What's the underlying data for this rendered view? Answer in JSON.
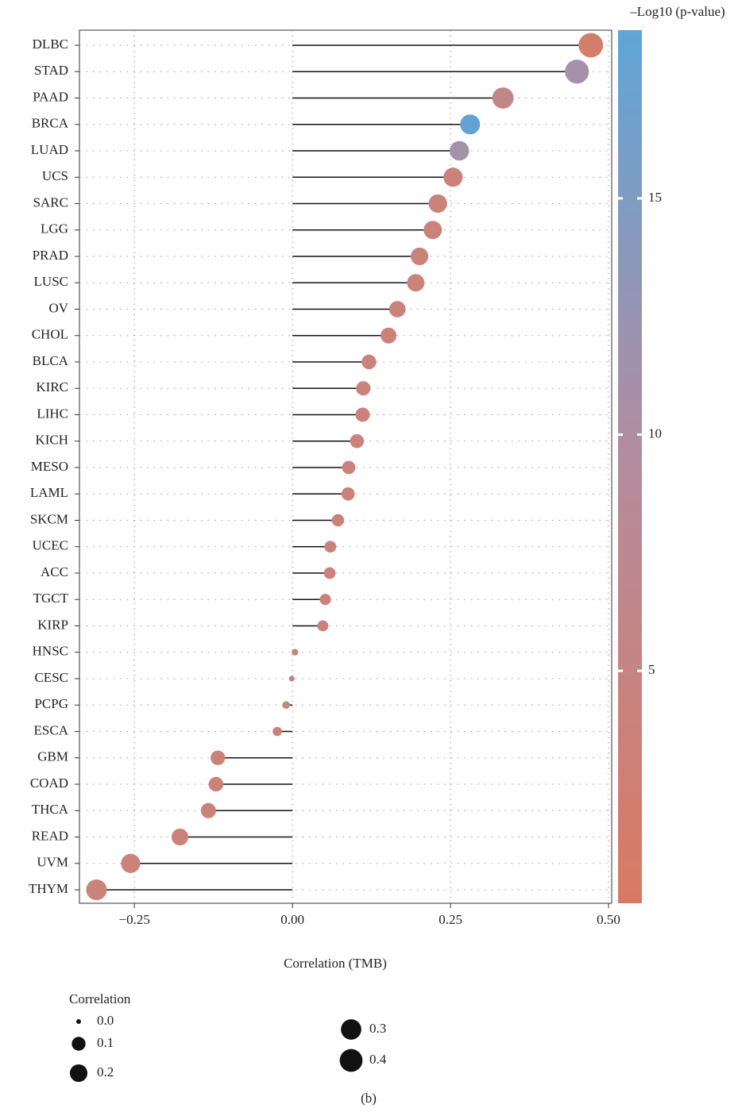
{
  "chart_data": {
    "type": "lollipop",
    "categories": [
      "DLBC",
      "STAD",
      "PAAD",
      "BRCA",
      "LUAD",
      "UCS",
      "SARC",
      "LGG",
      "PRAD",
      "LUSC",
      "OV",
      "CHOL",
      "BLCA",
      "KIRC",
      "LIHC",
      "KICH",
      "MESO",
      "LAML",
      "SKCM",
      "UCEC",
      "ACC",
      "TGCT",
      "KIRP",
      "HNSC",
      "CESC",
      "PCPG",
      "ESCA",
      "GBM",
      "COAD",
      "THCA",
      "READ",
      "UVM",
      "THYM"
    ],
    "values": [
      0.472,
      0.45,
      0.333,
      0.281,
      0.264,
      0.254,
      0.23,
      0.222,
      0.201,
      0.195,
      0.166,
      0.152,
      0.121,
      0.112,
      0.111,
      0.102,
      0.089,
      0.088,
      0.072,
      0.06,
      0.059,
      0.052,
      0.048,
      0.004,
      -0.001,
      -0.01,
      -0.024,
      -0.118,
      -0.121,
      -0.133,
      -0.178,
      -0.256,
      -0.31
    ],
    "neg_log10_p": [
      1.5,
      11,
      6,
      18,
      11,
      4,
      4,
      4,
      4,
      4,
      4,
      4,
      4,
      4,
      4,
      4,
      4,
      4,
      4,
      4,
      4,
      4,
      4,
      4,
      4,
      4,
      4,
      4,
      4,
      4,
      4,
      4,
      4
    ],
    "xlabel": "Correlation (TMB)",
    "xlim": [
      -0.337,
      0.505
    ],
    "xticks": [
      {
        "value": -0.25,
        "label": "−0.25"
      },
      {
        "value": 0,
        "label": "0.00"
      },
      {
        "value": 0.25,
        "label": "0.25"
      },
      {
        "value": 0.5,
        "label": "0.50"
      }
    ],
    "grid": true,
    "colorbar": {
      "title": "–Log10 (p-value)",
      "lim": [
        0.08,
        18.56
      ],
      "ticks": [
        5,
        10,
        15
      ],
      "colors": [
        "#d97a62",
        "#b58c9e",
        "#5ea5d8"
      ]
    },
    "size_legend": {
      "title": "Correlation",
      "values": [
        {
          "value": 0,
          "label": "0.0"
        },
        {
          "value": 0.1,
          "label": "0.1"
        },
        {
          "value": 0.2,
          "label": "0.2"
        },
        {
          "value": 0.3,
          "label": "0.3"
        },
        {
          "value": 0.4,
          "label": "0.4"
        }
      ],
      "color": "#111111"
    },
    "caption": "(b)"
  }
}
